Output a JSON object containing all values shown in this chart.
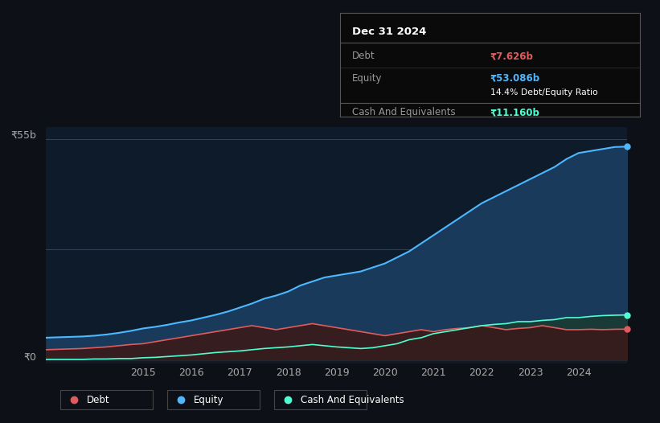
{
  "background_color": "#0d1117",
  "plot_bg_color": "#0d1b2a",
  "title_box": {
    "date": "Dec 31 2024",
    "debt_label": "Debt",
    "debt_value": "₹7.626b",
    "equity_label": "Equity",
    "equity_value": "₹53.086b",
    "ratio_text": "14.4% Debt/Equity Ratio",
    "cash_label": "Cash And Equivalents",
    "cash_value": "₹11.160b"
  },
  "ylabel_top": "₹55b",
  "ylabel_bot": "₹0",
  "x_ticks": [
    2015,
    2016,
    2017,
    2018,
    2019,
    2020,
    2021,
    2022,
    2023,
    2024
  ],
  "legend": [
    "Debt",
    "Equity",
    "Cash And Equivalents"
  ],
  "equity_color": "#4db8ff",
  "debt_color": "#e05c5c",
  "cash_color": "#4dffd2",
  "equity_fill": "#1a3a5c",
  "debt_fill": "#3a1a1a",
  "cash_fill": "#1a3a35",
  "years": [
    2013.0,
    2013.25,
    2013.5,
    2013.75,
    2014.0,
    2014.25,
    2014.5,
    2014.75,
    2015.0,
    2015.25,
    2015.5,
    2015.75,
    2016.0,
    2016.25,
    2016.5,
    2016.75,
    2017.0,
    2017.25,
    2017.5,
    2017.75,
    2018.0,
    2018.25,
    2018.5,
    2018.75,
    2019.0,
    2019.25,
    2019.5,
    2019.75,
    2020.0,
    2020.25,
    2020.5,
    2020.75,
    2021.0,
    2021.25,
    2021.5,
    2021.75,
    2022.0,
    2022.25,
    2022.5,
    2022.75,
    2023.0,
    2023.25,
    2023.5,
    2023.75,
    2024.0,
    2024.25,
    2024.5,
    2024.75,
    2025.0
  ],
  "equity": [
    5.5,
    5.6,
    5.7,
    5.8,
    6.0,
    6.3,
    6.7,
    7.2,
    7.8,
    8.2,
    8.7,
    9.3,
    9.8,
    10.5,
    11.2,
    12.0,
    13.0,
    14.0,
    15.2,
    16.0,
    17.0,
    18.5,
    19.5,
    20.5,
    21.0,
    21.5,
    22.0,
    23.0,
    24.0,
    25.5,
    27.0,
    29.0,
    31.0,
    33.0,
    35.0,
    37.0,
    39.0,
    40.5,
    42.0,
    43.5,
    45.0,
    46.5,
    48.0,
    50.0,
    51.5,
    52.0,
    52.5,
    53.0,
    53.086
  ],
  "debt": [
    2.5,
    2.6,
    2.7,
    2.8,
    3.0,
    3.2,
    3.5,
    3.8,
    4.0,
    4.5,
    5.0,
    5.5,
    6.0,
    6.5,
    7.0,
    7.5,
    8.0,
    8.5,
    8.0,
    7.5,
    8.0,
    8.5,
    9.0,
    8.5,
    8.0,
    7.5,
    7.0,
    6.5,
    6.0,
    6.5,
    7.0,
    7.5,
    7.0,
    7.5,
    7.8,
    8.0,
    8.5,
    8.0,
    7.5,
    7.8,
    8.0,
    8.5,
    8.0,
    7.5,
    7.5,
    7.6,
    7.5,
    7.6,
    7.626
  ],
  "cash": [
    0.1,
    0.1,
    0.1,
    0.1,
    0.2,
    0.2,
    0.3,
    0.3,
    0.5,
    0.6,
    0.8,
    1.0,
    1.2,
    1.5,
    1.8,
    2.0,
    2.2,
    2.5,
    2.8,
    3.0,
    3.2,
    3.5,
    3.8,
    3.5,
    3.2,
    3.0,
    2.8,
    3.0,
    3.5,
    4.0,
    5.0,
    5.5,
    6.5,
    7.0,
    7.5,
    8.0,
    8.5,
    8.8,
    9.0,
    9.5,
    9.5,
    9.8,
    10.0,
    10.5,
    10.5,
    10.8,
    11.0,
    11.1,
    11.16
  ]
}
